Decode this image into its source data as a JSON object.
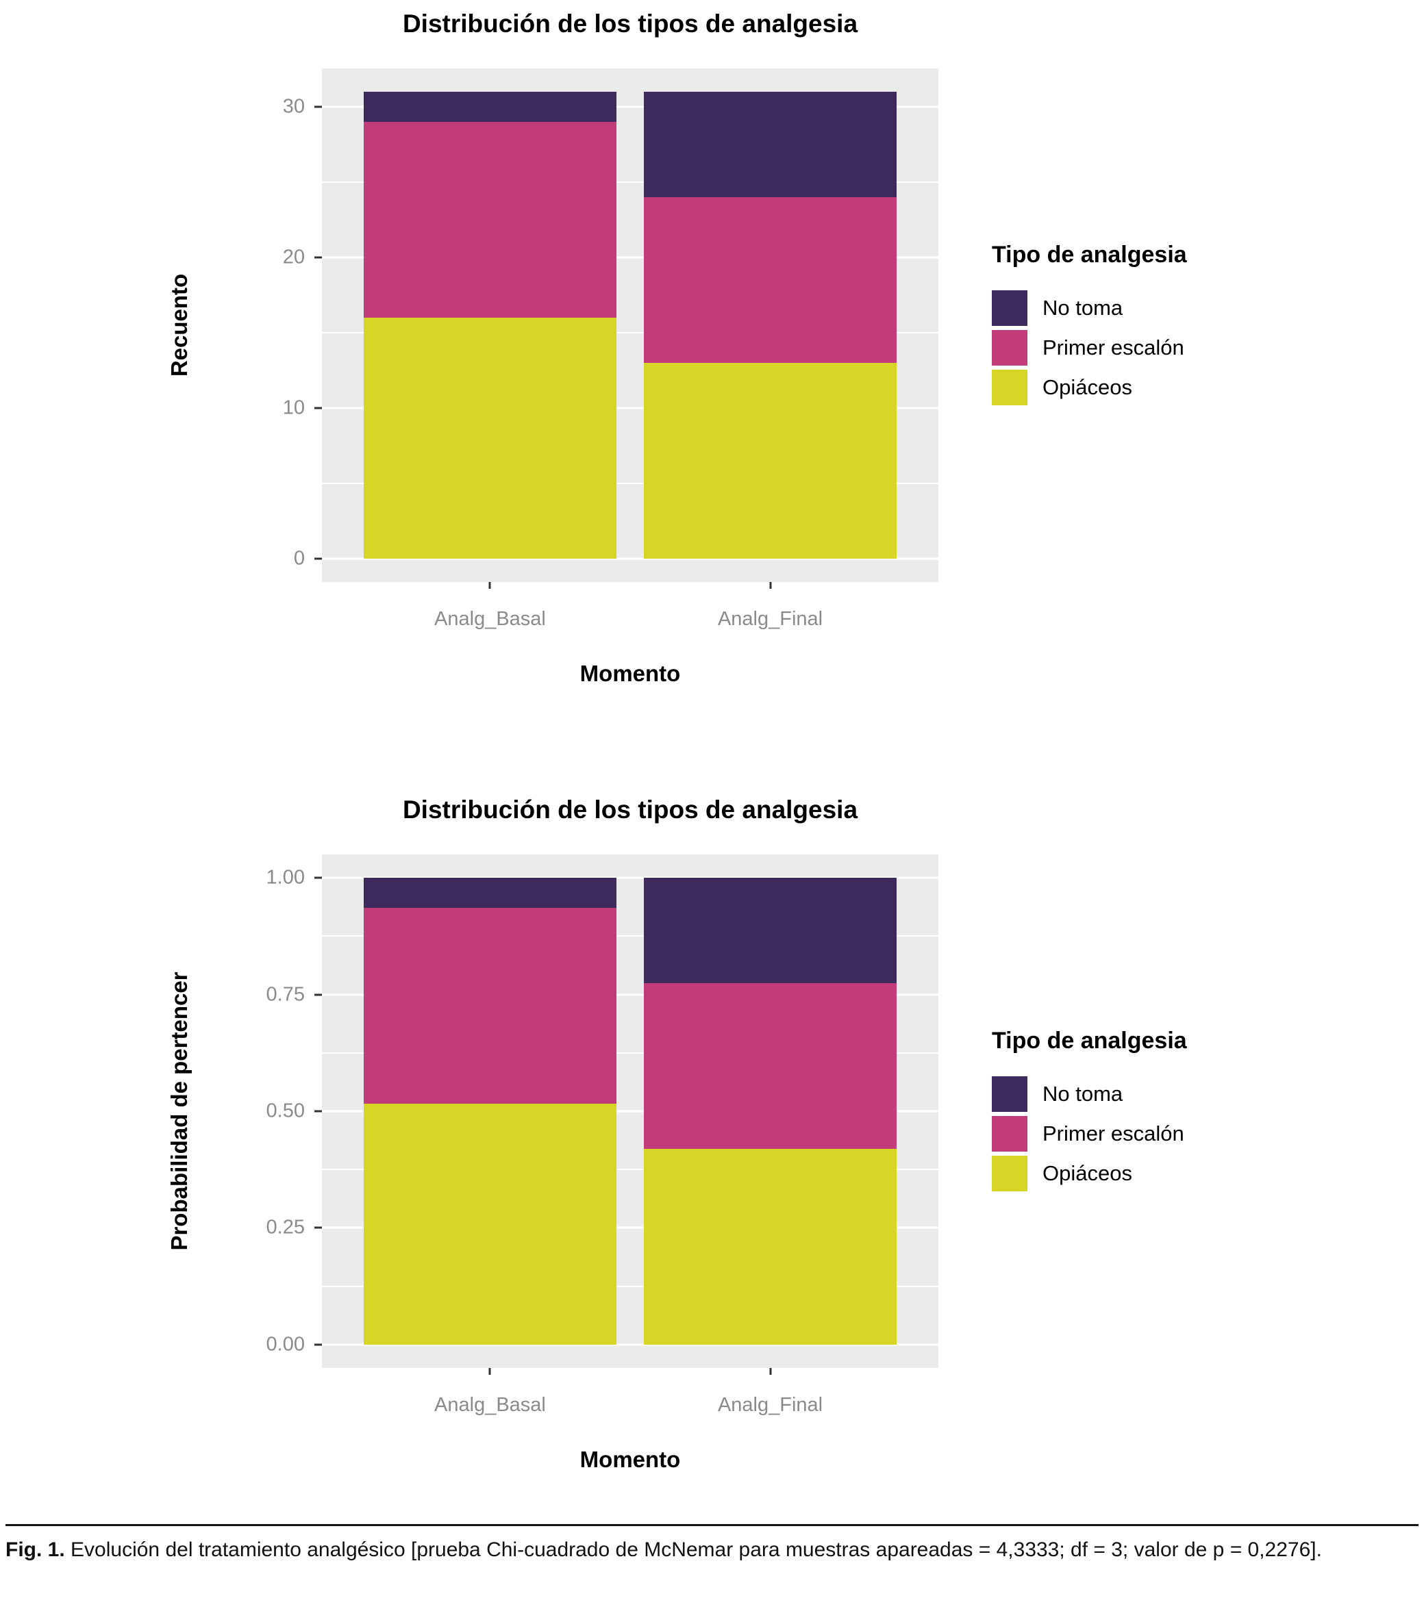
{
  "colors": {
    "panel_background": "#ebebeb",
    "gridline": "#ffffff",
    "axis_tick_text": "#8a8a8a",
    "no_toma": "#3d2b5e",
    "primer_escalon": "#c13c78",
    "opiaceos": "#d7d525"
  },
  "legend": {
    "title": "Tipo de analgesia",
    "items": [
      {
        "key": "no-toma",
        "label": "No toma",
        "color": "#3d2b5e"
      },
      {
        "key": "primer-escalon",
        "label": "Primer escalón",
        "color": "#c13c78"
      },
      {
        "key": "opiaceos",
        "label": "Opiáceos",
        "color": "#d7d525"
      }
    ]
  },
  "caption": {
    "label": "Fig. 1.",
    "text": "Evolución del tratamiento analgésico [prueba Chi-cuadrado de McNemar para muestras apareadas = 4,3333; df = 3; valor de p = 0,2276]."
  },
  "chart_data": [
    {
      "type": "bar",
      "stacked": true,
      "title": "Distribución de los tipos de analgesia",
      "xlabel": "Momento",
      "ylabel": "Recuento",
      "categories": [
        "Analg_Basal",
        "Analg_Final"
      ],
      "series": [
        {
          "name": "Opiáceos",
          "key": "opiaceos",
          "color": "#d7d525",
          "values": [
            16,
            13
          ]
        },
        {
          "name": "Primer escalón",
          "key": "primer-escalon",
          "color": "#c13c78",
          "values": [
            13,
            11
          ]
        },
        {
          "name": "No toma",
          "key": "no-toma",
          "color": "#3d2b5e",
          "values": [
            2,
            7
          ]
        }
      ],
      "totals": [
        31,
        31
      ],
      "ylim": [
        0,
        31
      ],
      "yticks": [
        0,
        10,
        20,
        30
      ],
      "ytick_labels": [
        "0",
        "10",
        "20",
        "30"
      ],
      "grid": true,
      "legend_position": "right"
    },
    {
      "type": "bar",
      "stacked": true,
      "title": "Distribución de los tipos de analgesia",
      "xlabel": "Momento",
      "ylabel": "Probabilidad de pertencer",
      "categories": [
        "Analg_Basal",
        "Analg_Final"
      ],
      "series": [
        {
          "name": "Opiáceos",
          "key": "opiaceos",
          "color": "#d7d525",
          "values": [
            0.516,
            0.419
          ]
        },
        {
          "name": "Primer escalón",
          "key": "primer-escalon",
          "color": "#c13c78",
          "values": [
            0.419,
            0.355
          ]
        },
        {
          "name": "No toma",
          "key": "no-toma",
          "color": "#3d2b5e",
          "values": [
            0.065,
            0.226
          ]
        }
      ],
      "totals": [
        1.0,
        1.0
      ],
      "ylim": [
        0,
        1
      ],
      "yticks": [
        0,
        0.25,
        0.5,
        0.75,
        1
      ],
      "ytick_labels": [
        "0.00",
        "0.25",
        "0.50",
        "0.75",
        "1.00"
      ],
      "grid": true,
      "legend_position": "right"
    }
  ]
}
